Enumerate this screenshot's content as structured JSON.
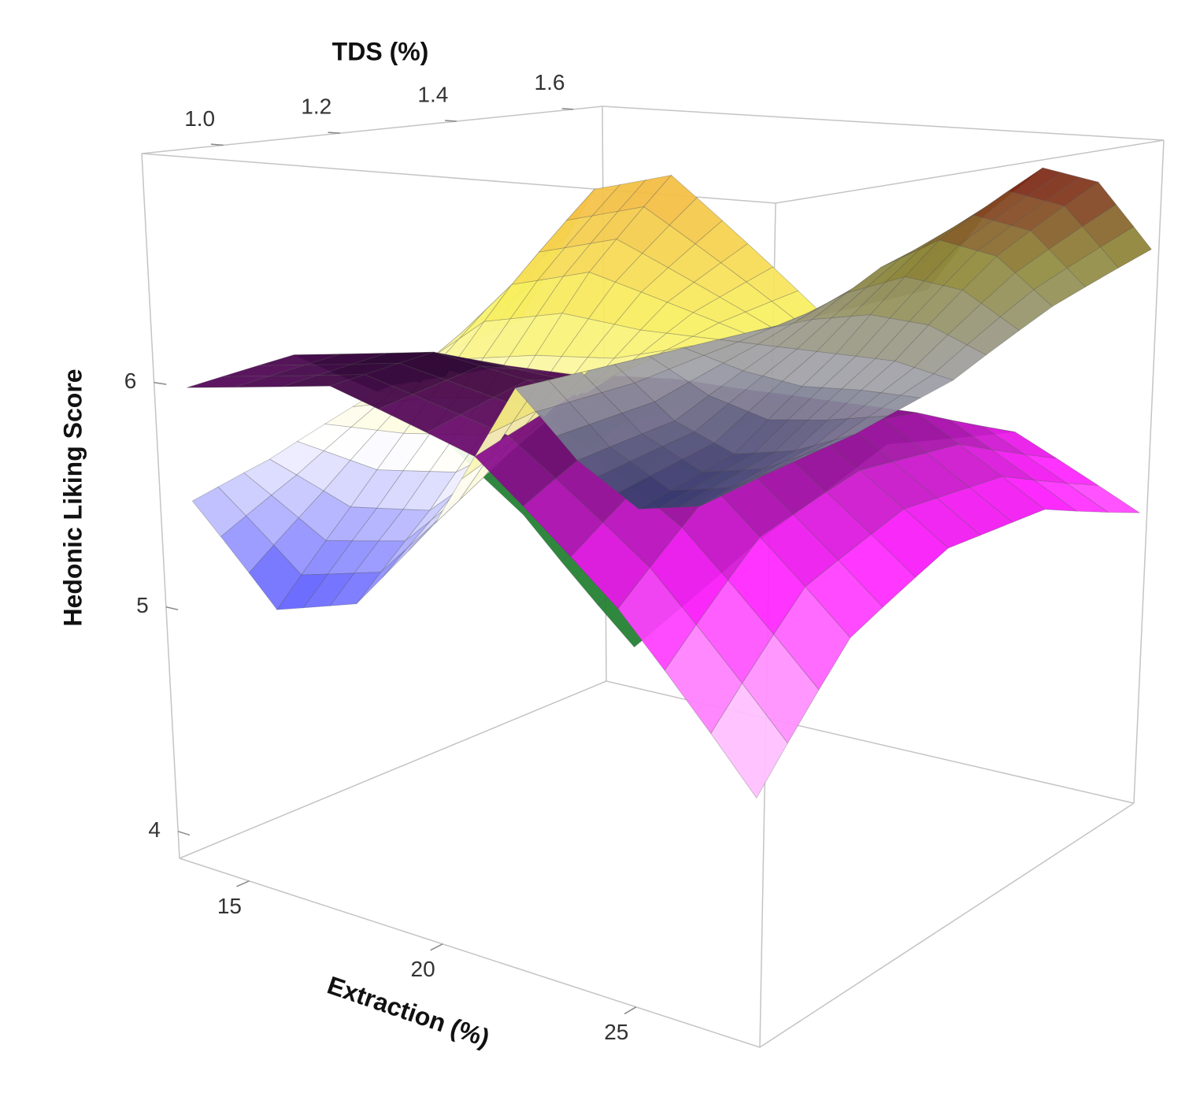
{
  "chart_data": {
    "type": "surface3d",
    "x_label": "Extraction (%)",
    "y_label": "TDS (%)",
    "z_label": "Hedonic Liking Score",
    "xlim": [
      13.2,
      28.2
    ],
    "ylim": [
      0.86,
      1.65
    ],
    "zlim": [
      3.88,
      7.02
    ],
    "xticks": [
      15,
      20,
      25
    ],
    "yticks": [
      {
        "value": 1.0,
        "label": "1.0"
      },
      1.2,
      1.4,
      1.6
    ],
    "zticks": [
      4,
      5,
      6
    ],
    "surfaces": [
      {
        "colormap": [
          "#4a4aff",
          "#ffffff",
          "#f8f060",
          "#f2b23c"
        ],
        "x": [
          14,
          16,
          18,
          20,
          22
        ],
        "y": [
          0.86,
          1.0,
          1.15,
          1.3,
          1.45
        ],
        "z": [
          [
            5.5,
            5.6,
            5.75,
            5.9,
            6.0
          ],
          [
            5.1,
            5.45,
            5.85,
            6.3,
            6.7
          ],
          [
            5.2,
            5.5,
            5.9,
            6.4,
            6.8
          ],
          [
            5.6,
            5.8,
            6.0,
            6.3,
            6.5
          ],
          [
            6.2,
            6.2,
            6.2,
            6.2,
            6.2
          ]
        ]
      },
      {
        "colormap": [
          "#2a3566",
          "#a0a0a8",
          "#8f8a3a",
          "#7a1a10"
        ],
        "x": [
          22,
          23.5,
          25,
          26.5,
          28
        ],
        "y": [
          0.86,
          1.05,
          1.25,
          1.45,
          1.65
        ],
        "z": [
          [
            6.2,
            6.2,
            6.2,
            6.2,
            6.2
          ],
          [
            5.95,
            6.0,
            6.2,
            6.45,
            6.6
          ],
          [
            5.8,
            5.9,
            6.2,
            6.6,
            6.85
          ],
          [
            5.85,
            5.95,
            6.2,
            6.55,
            6.8
          ],
          [
            6.0,
            6.05,
            6.15,
            6.35,
            6.5
          ]
        ]
      },
      {
        "colormap": [
          "#c8f0c8",
          "#ffffff",
          "#ff1aff",
          "#2a0030"
        ],
        "back_color": "#1f7f2f",
        "x": [
          14,
          17.5,
          21,
          24.5,
          28
        ],
        "y": [
          0.86,
          1.05,
          1.25,
          1.45,
          1.65
        ],
        "z": [
          [
            6.0,
            6.05,
            5.7,
            5.0,
            4.1
          ],
          [
            6.1,
            6.15,
            5.95,
            5.5,
            4.8
          ],
          [
            5.9,
            6.05,
            6.0,
            5.8,
            5.4
          ],
          [
            5.4,
            5.75,
            5.85,
            5.8,
            5.55
          ],
          [
            4.8,
            5.25,
            5.45,
            5.45,
            5.25
          ]
        ]
      }
    ]
  }
}
